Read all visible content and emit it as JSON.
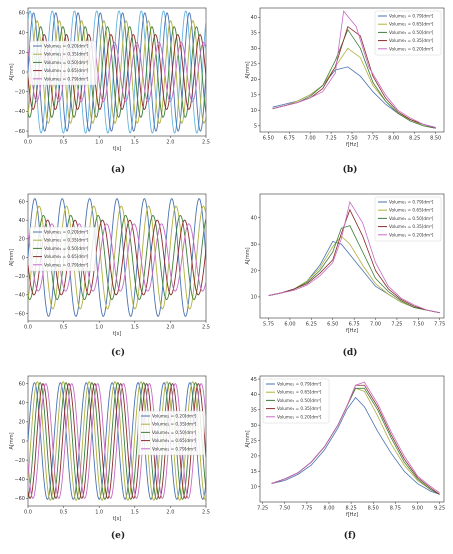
{
  "colors": {
    "c1": "#4a72b0",
    "c2": "#b0b040",
    "c3": "#3f7f3a",
    "c4": "#8b2a2a",
    "c5": "#c56cc5",
    "c6": "#64b5e0"
  },
  "chart_data": [
    {
      "id": "a",
      "panel_label": "(a)",
      "type": "line",
      "kind": "time",
      "xlabel": "t[s]",
      "ylabel": "A[mm]",
      "xlim": [
        0,
        2.5
      ],
      "ylim": [
        -65,
        65
      ],
      "xticks": [
        0.0,
        0.5,
        1.0,
        1.5,
        2.0,
        2.5
      ],
      "xtick_labels": [
        "0.0",
        "0.5",
        "1.0",
        "1.5",
        "2.0",
        "2.5"
      ],
      "yticks": [
        -60,
        -40,
        -20,
        0,
        20,
        40,
        60
      ],
      "ytick_labels": [
        "−60",
        "−40",
        "−20",
        "0",
        "20",
        "40",
        "60"
      ],
      "frequency": 3.2,
      "legend": "left",
      "series": [
        {
          "name": "Volume₁ = 0.20[dm³]",
          "color": "c1",
          "amplitude": 60,
          "phase": 0.0
        },
        {
          "name": "Volume₁ = 0.35[dm³]",
          "color": "c2",
          "amplitude": 52,
          "phase": 0.05
        },
        {
          "name": "Volume₁ = 0.50[dm³]",
          "color": "c3",
          "amplitude": 46,
          "phase": 0.1
        },
        {
          "name": "Volume₁ = 0.65[dm³]",
          "color": "c4",
          "amplitude": 38,
          "phase": 0.15
        },
        {
          "name": "Volume₁ = 0.79[dm³]",
          "color": "c5",
          "amplitude": 30,
          "phase": 0.2
        }
      ],
      "extra_series": [
        {
          "color": "c6",
          "amplitude": 62,
          "phase": -0.05
        }
      ]
    },
    {
      "id": "b",
      "panel_label": "(b)",
      "type": "line",
      "kind": "freq",
      "xlabel": "f[Hz]",
      "ylabel": "A[mm]",
      "xlim": [
        6.4,
        8.6
      ],
      "ylim": [
        3,
        43
      ],
      "xticks": [
        6.5,
        6.75,
        7.0,
        7.25,
        7.5,
        7.75,
        8.0,
        8.25,
        8.5
      ],
      "xtick_labels": [
        "6.50",
        "6.75",
        "7.00",
        "7.25",
        "7.50",
        "7.75",
        "8.00",
        "8.25",
        "8.50"
      ],
      "yticks": [
        5,
        10,
        15,
        20,
        25,
        30,
        35,
        40
      ],
      "ytick_labels": [
        "5",
        "10",
        "15",
        "20",
        "25",
        "30",
        "35",
        "40"
      ],
      "legend": "top-right",
      "series": [
        {
          "name": "Volume₁ = 0.79[dm³]",
          "color": "c1",
          "x": [
            6.55,
            6.7,
            6.85,
            7.0,
            7.15,
            7.3,
            7.45,
            7.6,
            7.75,
            7.9,
            8.05,
            8.2,
            8.35,
            8.5
          ],
          "y": [
            11,
            12,
            13,
            15,
            18,
            23,
            24,
            21,
            16,
            12,
            9,
            7,
            5.5,
            4.5
          ]
        },
        {
          "name": "Volume₁ = 0.65[dm³]",
          "color": "c2",
          "x": [
            6.55,
            6.7,
            6.85,
            7.0,
            7.15,
            7.3,
            7.45,
            7.6,
            7.75,
            7.9,
            8.05,
            8.2,
            8.35,
            8.5
          ],
          "y": [
            10.5,
            11.5,
            13,
            15,
            18,
            24,
            30,
            27,
            18,
            13,
            9,
            7,
            5,
            4.2
          ]
        },
        {
          "name": "Volume₁ = 0.50[dm³]",
          "color": "c3",
          "x": [
            6.55,
            6.7,
            6.85,
            7.0,
            7.15,
            7.3,
            7.45,
            7.6,
            7.75,
            7.9,
            8.05,
            8.2,
            8.35,
            8.5
          ],
          "y": [
            10.5,
            11.5,
            12.5,
            14.5,
            18,
            26,
            36,
            30,
            19,
            13,
            9,
            6.5,
            5,
            4.2
          ]
        },
        {
          "name": "Volume₁ = 0.35[dm³]",
          "color": "c4",
          "x": [
            6.55,
            6.7,
            6.85,
            7.0,
            7.15,
            7.3,
            7.45,
            7.6,
            7.75,
            7.9,
            8.05,
            8.2,
            8.35,
            8.5
          ],
          "y": [
            10.5,
            11.5,
            12.5,
            14,
            17,
            24,
            37,
            34,
            21,
            14,
            9.5,
            7,
            5.5,
            4.3
          ]
        },
        {
          "name": "Volume₁ = 0.20[dm³]",
          "color": "c5",
          "x": [
            6.55,
            6.7,
            6.85,
            7.0,
            7.15,
            7.3,
            7.4,
            7.55,
            7.7,
            7.9,
            8.05,
            8.2,
            8.35,
            8.5
          ],
          "y": [
            10.5,
            11.5,
            12.5,
            14,
            16,
            22,
            42,
            37,
            24,
            15,
            10,
            7.5,
            5.5,
            4.4
          ]
        }
      ]
    },
    {
      "id": "c",
      "panel_label": "(c)",
      "type": "line",
      "kind": "time",
      "xlabel": "t[s]",
      "ylabel": "A[mm]",
      "xlim": [
        0,
        2.5
      ],
      "ylim": [
        -68,
        68
      ],
      "xticks": [
        0.0,
        0.5,
        1.0,
        1.5,
        2.0,
        2.5
      ],
      "xtick_labels": [
        "0.0",
        "0.5",
        "1.0",
        "1.5",
        "2.0",
        "2.5"
      ],
      "yticks": [
        -60,
        -40,
        -20,
        0,
        20,
        40,
        60
      ],
      "ytick_labels": [
        "−60",
        "−40",
        "−20",
        "0",
        "20",
        "40",
        "60"
      ],
      "frequency": 2.6,
      "legend": "left",
      "series": [
        {
          "name": "Volume₁ = 0.20[dm³]",
          "color": "c1",
          "amplitude": 63,
          "phase": 0.0
        },
        {
          "name": "Volume₁ = 0.35[dm³]",
          "color": "c2",
          "amplitude": 55,
          "phase": 0.06
        },
        {
          "name": "Volume₁ = 0.50[dm³]",
          "color": "c3",
          "amplitude": 45,
          "phase": 0.12
        },
        {
          "name": "Volume₁ = 0.65[dm³]",
          "color": "c4",
          "amplitude": 40,
          "phase": 0.18
        },
        {
          "name": "Volume₁ = 0.79[dm³]",
          "color": "c5",
          "amplitude": 36,
          "phase": 0.24
        }
      ],
      "extra_series": []
    },
    {
      "id": "d",
      "panel_label": "(d)",
      "type": "line",
      "kind": "freq",
      "xlabel": "f[Hz]",
      "ylabel": "A[mm]",
      "xlim": [
        5.65,
        7.8
      ],
      "ylim": [
        2,
        49
      ],
      "xticks": [
        5.75,
        6.0,
        6.25,
        6.5,
        6.75,
        7.0,
        7.25,
        7.5,
        7.75
      ],
      "xtick_labels": [
        "5.75",
        "6.00",
        "6.25",
        "6.50",
        "6.75",
        "7.00",
        "7.25",
        "7.50",
        "7.75"
      ],
      "yticks": [
        10,
        20,
        30,
        40
      ],
      "ytick_labels": [
        "10",
        "20",
        "30",
        "40"
      ],
      "legend": "top-right",
      "series": [
        {
          "name": "Volume₁ = 0.79[dm³]",
          "color": "c1",
          "x": [
            5.75,
            5.9,
            6.05,
            6.2,
            6.35,
            6.5,
            6.6,
            6.7,
            6.85,
            7.0,
            7.15,
            7.3,
            7.45,
            7.6,
            7.75
          ],
          "y": [
            10.5,
            11.5,
            13,
            16,
            22,
            31,
            30,
            26,
            20,
            14,
            11,
            8,
            6,
            5,
            4
          ]
        },
        {
          "name": "Volume₁ = 0.65[dm³]",
          "color": "c2",
          "x": [
            5.75,
            5.9,
            6.05,
            6.2,
            6.35,
            6.5,
            6.6,
            6.7,
            6.85,
            7.0,
            7.15,
            7.3,
            7.45,
            7.6,
            7.75
          ],
          "y": [
            10.5,
            11.5,
            13,
            16,
            21,
            29,
            33,
            30,
            22,
            15,
            11,
            8,
            6,
            5,
            4
          ]
        },
        {
          "name": "Volume₁ = 0.50[dm³]",
          "color": "c3",
          "x": [
            5.75,
            5.9,
            6.05,
            6.2,
            6.35,
            6.5,
            6.6,
            6.7,
            6.85,
            7.0,
            7.15,
            7.3,
            7.45,
            7.6,
            7.75
          ],
          "y": [
            10.5,
            11.5,
            13,
            15.5,
            20,
            27,
            36,
            37,
            27,
            17,
            12,
            8.5,
            6,
            5,
            4
          ]
        },
        {
          "name": "Volume₁ = 0.35[dm³]",
          "color": "c4",
          "x": [
            5.75,
            5.9,
            6.05,
            6.2,
            6.35,
            6.5,
            6.6,
            6.7,
            6.85,
            7.0,
            7.15,
            7.3,
            7.45,
            7.6,
            7.75
          ],
          "y": [
            10.5,
            11.5,
            13,
            15,
            19,
            24,
            34,
            43,
            33,
            20,
            13,
            9,
            6.5,
            5,
            4
          ]
        },
        {
          "name": "Volume₁ = 0.20[dm³]",
          "color": "c5",
          "x": [
            5.75,
            5.9,
            6.05,
            6.2,
            6.35,
            6.5,
            6.6,
            6.7,
            6.85,
            7.0,
            7.15,
            7.3,
            7.45,
            7.6,
            7.75
          ],
          "y": [
            10.5,
            11.5,
            12.5,
            14.5,
            18,
            23,
            32,
            46,
            38,
            23,
            14,
            9.5,
            7,
            5,
            4
          ]
        }
      ]
    },
    {
      "id": "e",
      "panel_label": "(e)",
      "type": "line",
      "kind": "time",
      "xlabel": "t[s]",
      "ylabel": "A[mm]",
      "xlim": [
        0,
        2.5
      ],
      "ylim": [
        -68,
        68
      ],
      "xticks": [
        0.0,
        0.5,
        1.0,
        1.5,
        2.0,
        2.5
      ],
      "xtick_labels": [
        "0.0",
        "0.5",
        "1.0",
        "1.5",
        "2.0",
        "2.5"
      ],
      "yticks": [
        -60,
        -40,
        -20,
        0,
        20,
        40,
        60
      ],
      "ytick_labels": [
        "−60",
        "−40",
        "−20",
        "0",
        "20",
        "40",
        "60"
      ],
      "frequency": 2.75,
      "legend": "right",
      "series": [
        {
          "name": "Volume₁ = 0.20[dm³]",
          "color": "c1",
          "amplitude": 61,
          "phase": 0.0
        },
        {
          "name": "Volume₁ = 0.35[dm³]",
          "color": "c2",
          "amplitude": 62,
          "phase": 0.04
        },
        {
          "name": "Volume₁ = 0.50[dm³]",
          "color": "c3",
          "amplitude": 61,
          "phase": 0.08
        },
        {
          "name": "Volume₁ = 0.65[dm³]",
          "color": "c4",
          "amplitude": 60,
          "phase": 0.12
        },
        {
          "name": "Volume₁ = 0.79[dm³]",
          "color": "c5",
          "amplitude": 60,
          "phase": 0.16
        }
      ],
      "extra_series": []
    },
    {
      "id": "f",
      "panel_label": "(f)",
      "type": "line",
      "kind": "freq",
      "xlabel": "f[Hz]",
      "ylabel": "A[mm]",
      "xlim": [
        7.22,
        9.3
      ],
      "ylim": [
        5,
        46
      ],
      "xticks": [
        7.25,
        7.5,
        7.75,
        8.0,
        8.25,
        8.5,
        8.75,
        9.0,
        9.25
      ],
      "xtick_labels": [
        "7.25",
        "7.50",
        "7.75",
        "8.00",
        "8.25",
        "8.50",
        "8.75",
        "9.00",
        "9.25"
      ],
      "yticks": [
        10,
        15,
        20,
        25,
        30,
        35,
        40,
        45
      ],
      "ytick_labels": [
        "10",
        "15",
        "20",
        "25",
        "30",
        "35",
        "40",
        "45"
      ],
      "legend": "top-left",
      "series": [
        {
          "name": "Volume₁ = 0.79[dm³]",
          "color": "c1",
          "x": [
            7.35,
            7.5,
            7.65,
            7.8,
            7.95,
            8.1,
            8.2,
            8.3,
            8.4,
            8.55,
            8.7,
            8.85,
            9.0,
            9.15,
            9.25
          ],
          "y": [
            11,
            12,
            14,
            17,
            22,
            29,
            35,
            39,
            36,
            28,
            21,
            15,
            11,
            8.5,
            7.5
          ]
        },
        {
          "name": "Volume₁ = 0.65[dm³]",
          "color": "c2",
          "x": [
            7.35,
            7.5,
            7.65,
            7.8,
            7.95,
            8.1,
            8.2,
            8.3,
            8.4,
            8.55,
            8.7,
            8.85,
            9.0,
            9.15,
            9.25
          ],
          "y": [
            11,
            12.5,
            14.5,
            18,
            23,
            30,
            36,
            42,
            41,
            33,
            24,
            17,
            12,
            9,
            7.5
          ]
        },
        {
          "name": "Volume₁ = 0.50[dm³]",
          "color": "c3",
          "x": [
            7.35,
            7.5,
            7.65,
            7.8,
            7.95,
            8.1,
            8.2,
            8.3,
            8.4,
            8.55,
            8.7,
            8.85,
            9.0,
            9.15,
            9.25
          ],
          "y": [
            11,
            12.5,
            14.5,
            18,
            23,
            30,
            36,
            42,
            42,
            35,
            26,
            18,
            12.5,
            9,
            7.5
          ]
        },
        {
          "name": "Volume₁ = 0.35[dm³]",
          "color": "c4",
          "x": [
            7.35,
            7.5,
            7.65,
            7.8,
            7.95,
            8.1,
            8.2,
            8.3,
            8.4,
            8.55,
            8.7,
            8.85,
            9.0,
            9.15,
            9.25
          ],
          "y": [
            11,
            12.5,
            14.5,
            18,
            23,
            30,
            36,
            43,
            43,
            36,
            27,
            19,
            13,
            9.5,
            7.5
          ]
        },
        {
          "name": "Volume₁ = 0.20[dm³]",
          "color": "c5",
          "x": [
            7.35,
            7.5,
            7.65,
            7.8,
            7.95,
            8.1,
            8.2,
            8.3,
            8.4,
            8.55,
            8.7,
            8.85,
            9.0,
            9.15,
            9.25
          ],
          "y": [
            11,
            12.5,
            14.5,
            18,
            23,
            30,
            36,
            43,
            44,
            37,
            28,
            20,
            13.5,
            10,
            8
          ]
        }
      ]
    }
  ]
}
